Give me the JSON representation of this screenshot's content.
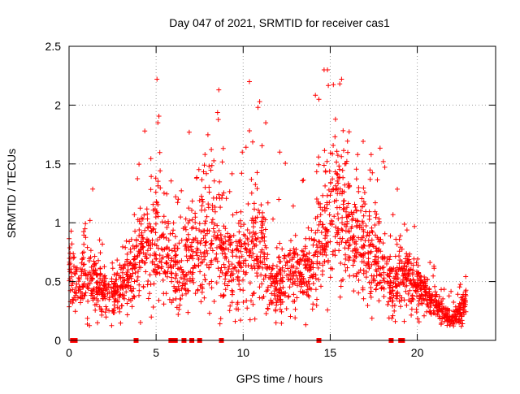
{
  "chart_data": {
    "type": "scatter",
    "title": "Day 047 of 2021, SRMTID for receiver cas1",
    "xlabel": "GPS time / hours",
    "ylabel": "SRMTID / TECUs",
    "xlim": [
      0,
      24.5
    ],
    "ylim": [
      0,
      2.5
    ],
    "xticks": [
      0,
      5,
      10,
      15,
      20
    ],
    "yticks": [
      0,
      0.5,
      1,
      1.5,
      2,
      2.5
    ],
    "ytick_labels": [
      "0",
      "0.5",
      "1",
      "1.5",
      "2",
      "2.5"
    ],
    "grid": true,
    "marker": "plus",
    "color": "#ff0000",
    "zero_markers_x": [
      0.2,
      0.35,
      3.85,
      5.85,
      6.1,
      6.6,
      7.05,
      7.5,
      8.75,
      14.35,
      18.5,
      19.05,
      19.15
    ],
    "envelope": {
      "x": [
        0.0,
        0.5,
        1.0,
        1.5,
        2.0,
        2.5,
        3.0,
        3.5,
        4.0,
        4.5,
        5.0,
        5.5,
        6.0,
        6.5,
        7.0,
        7.5,
        8.0,
        8.5,
        9.0,
        9.5,
        10.0,
        10.5,
        11.0,
        11.5,
        12.0,
        12.5,
        13.0,
        13.5,
        14.0,
        14.5,
        15.0,
        15.5,
        16.0,
        16.5,
        17.0,
        17.5,
        18.0,
        18.5,
        19.0,
        19.5,
        20.0,
        20.5,
        21.0,
        21.5,
        22.0,
        22.5,
        22.8
      ],
      "median": [
        0.55,
        0.45,
        0.55,
        0.5,
        0.4,
        0.35,
        0.45,
        0.5,
        0.7,
        0.75,
        0.9,
        0.7,
        0.55,
        0.55,
        0.8,
        0.75,
        0.95,
        1.0,
        0.65,
        0.6,
        0.7,
        0.75,
        0.8,
        0.5,
        0.45,
        0.5,
        0.55,
        0.55,
        0.6,
        0.8,
        1.0,
        1.1,
        0.9,
        0.85,
        0.75,
        0.75,
        0.6,
        0.45,
        0.5,
        0.5,
        0.45,
        0.4,
        0.3,
        0.22,
        0.18,
        0.25,
        0.35
      ],
      "spread": [
        0.22,
        0.2,
        0.25,
        0.2,
        0.15,
        0.15,
        0.15,
        0.2,
        0.3,
        0.35,
        0.4,
        0.35,
        0.25,
        0.3,
        0.35,
        0.35,
        0.4,
        0.45,
        0.3,
        0.3,
        0.35,
        0.4,
        0.35,
        0.2,
        0.2,
        0.25,
        0.25,
        0.25,
        0.3,
        0.4,
        0.45,
        0.5,
        0.4,
        0.35,
        0.3,
        0.3,
        0.25,
        0.2,
        0.2,
        0.2,
        0.15,
        0.12,
        0.1,
        0.08,
        0.06,
        0.1,
        0.12
      ]
    },
    "peaks": [
      [
        5.05,
        2.22
      ],
      [
        8.6,
        2.13
      ],
      [
        15.65,
        2.22
      ],
      [
        15.55,
        2.18
      ],
      [
        14.35,
        2.05
      ],
      [
        10.95,
        2.03
      ],
      [
        10.85,
        1.98
      ],
      [
        5.1,
        1.85
      ],
      [
        4.35,
        1.78
      ],
      [
        6.9,
        1.77
      ],
      [
        11.3,
        1.85
      ],
      [
        15.3,
        1.88
      ],
      [
        17.35,
        1.58
      ],
      [
        18.05,
        1.52
      ],
      [
        12.1,
        1.6
      ],
      [
        9.95,
        1.6
      ]
    ]
  }
}
